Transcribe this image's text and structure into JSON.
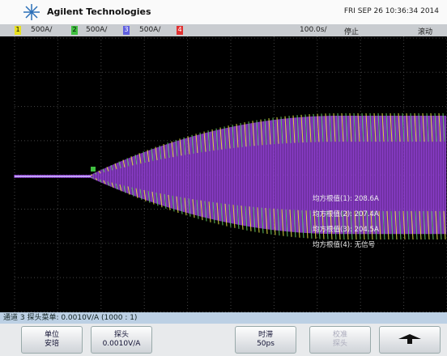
{
  "header": {
    "brand": "Agilent Technologies",
    "timestamp": "FRI SEP 26 10:36:34 2014"
  },
  "channel_bar": {
    "channels": [
      {
        "label": "1",
        "scale": "500A/"
      },
      {
        "label": "2",
        "scale": "500A/"
      },
      {
        "label": "3",
        "scale": "500A/"
      },
      {
        "label": "4"
      }
    ],
    "timebase": "100.0s/",
    "state": "停止",
    "mode": "滚动"
  },
  "measurements": [
    "均方根值(1): 208.6A",
    "均方根值(2): 207.4A",
    "均方根值(3): 204.5A",
    "均方根值(4): 无信号"
  ],
  "status": "通道 3 探头菜单: 0.0010V/A (1000 : 1)",
  "softkeys": [
    {
      "label": "单位",
      "value": "安培"
    },
    {
      "label": "探头",
      "value": "0.0010V/A"
    },
    {
      "label": "时滞",
      "value": "50ps"
    },
    {
      "label": "校准",
      "value": "探头"
    }
  ]
}
